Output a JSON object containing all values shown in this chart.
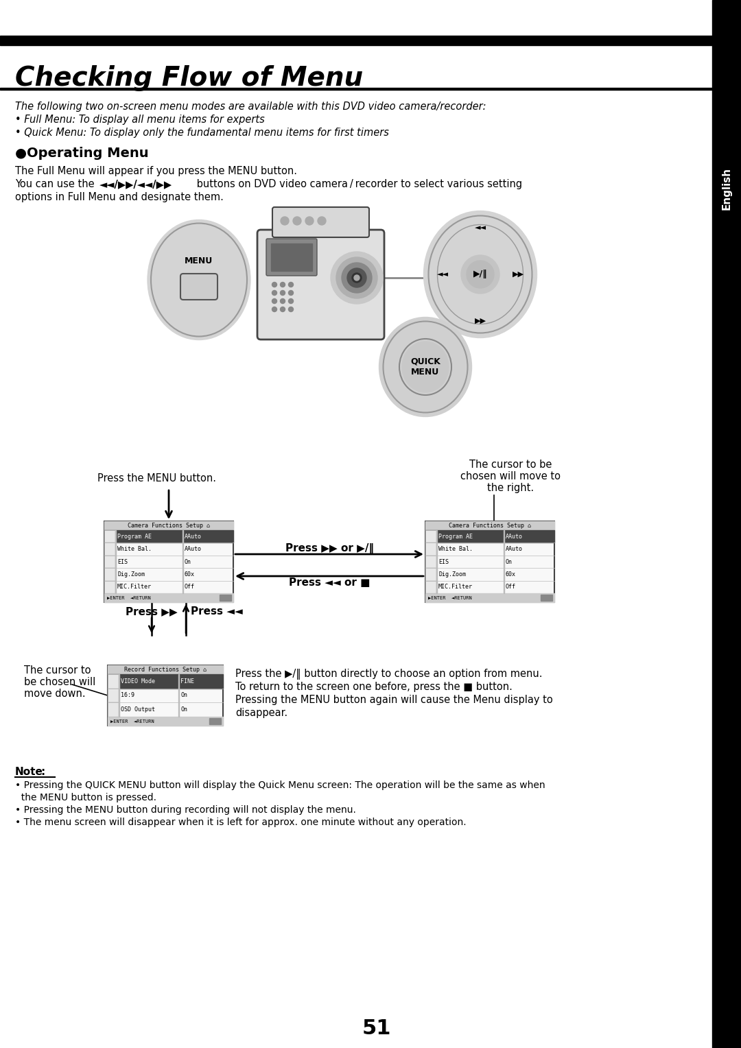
{
  "title": "Checking Flow of Menu",
  "sidebar_text": "English",
  "page_number": "51",
  "intro_text": "The following two on-screen menu modes are available with this DVD video camera/recorder:",
  "bullet1": "• Full Menu: To display all menu items for experts",
  "bullet2": "• Quick Menu: To display only the fundamental menu items for first timers",
  "section_title": "●Operating Menu",
  "body1": "The Full Menu will appear if you press the MENU button.",
  "body2_a": "You can use the ",
  "body2_buttons": "◄◄/▶▶/◄◄/▶▶",
  "body2_b": " buttons on DVD video camera / recorder to select various setting",
  "body2_c": "options in Full Menu and designate them.",
  "press_menu": "Press the MENU button.",
  "press_ff": "Press ▶▶ or ▶/‖",
  "press_rew": "Press ◄◄ or ■",
  "cursor_right_1": "The cursor to be",
  "cursor_right_2": "chosen will move to",
  "cursor_right_3": "the right.",
  "cursor_down_1": "The cursor to",
  "cursor_down_2": "be chosen will",
  "cursor_down_3": "move down.",
  "press_ff2": "Press ▶▶",
  "press_rew2": "Press ◄◄",
  "record_text_1": "Press the ▶/‖ button directly to choose an option from menu.",
  "record_text_2": "To return to the screen one before, press the ■ button.",
  "record_text_3": "Pressing the MENU button again will cause the Menu display to",
  "record_text_4": "disappear.",
  "note_title": "Note",
  "note1": "• Pressing the QUICK MENU button will display the Quick Menu screen: The operation will be the same as when",
  "note1b": "  the MENU button is pressed.",
  "note2": "• Pressing the MENU button during recording will not display the menu.",
  "note3": "• The menu screen will disappear when it is left for approx. one minute without any operation.",
  "bg_color": "#ffffff",
  "text_color": "#000000",
  "bar_color": "#000000",
  "sidebar_bg": "#000000",
  "sidebar_text_color": "#ffffff",
  "cam_menu_rows": [
    [
      "Program AE",
      "AAuto"
    ],
    [
      "White Bal.",
      "AAuto"
    ],
    [
      "EIS",
      "On"
    ],
    [
      "Dig.Zoom",
      "60x"
    ],
    [
      "MIC.Filter",
      "Off"
    ]
  ],
  "rec_rows": [
    [
      "VIDEO Mode",
      "FINE"
    ],
    [
      "16:9",
      "On"
    ],
    [
      "OSD Output",
      "On"
    ]
  ]
}
